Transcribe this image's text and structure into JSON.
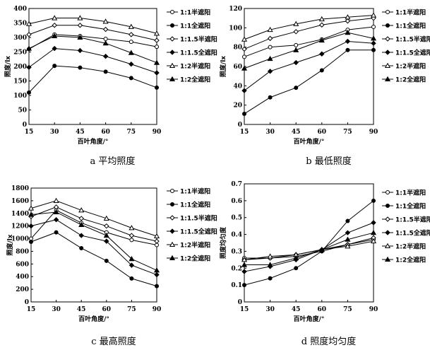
{
  "chart_data": [
    {
      "type": "line",
      "caption": "a  平均照度",
      "xlabel": "百叶角度/°",
      "ylabel": "照度/lx",
      "x": [
        15,
        30,
        45,
        60,
        75,
        90
      ],
      "ylim": [
        0,
        400
      ],
      "yticks": [
        0,
        50,
        100,
        150,
        200,
        250,
        300,
        350,
        400
      ],
      "legend_position": "right",
      "series": [
        {
          "name": "1:1半遮阳",
          "marker": "circle-open",
          "values": [
            260,
            310,
            305,
            295,
            285,
            268
          ]
        },
        {
          "name": "1:1全遮阳",
          "marker": "circle-filled",
          "values": [
            110,
            202,
            196,
            182,
            160,
            127
          ]
        },
        {
          "name": "1:1.5半遮阳",
          "marker": "diamond-open",
          "values": [
            310,
            342,
            342,
            328,
            310,
            290
          ]
        },
        {
          "name": "1:1.5全遮阳",
          "marker": "diamond-filled",
          "values": [
            197,
            262,
            255,
            235,
            208,
            178
          ]
        },
        {
          "name": "1:2半遮阳",
          "marker": "triangle-open",
          "values": [
            347,
            367,
            367,
            355,
            337,
            314
          ]
        },
        {
          "name": "1:2全遮阳",
          "marker": "triangle-filled",
          "values": [
            262,
            305,
            300,
            280,
            247,
            213
          ]
        }
      ]
    },
    {
      "type": "line",
      "caption": "b  最低照度",
      "xlabel": "百叶角度/°",
      "ylabel": "照度/lx",
      "x": [
        15,
        30,
        45,
        60,
        75,
        90
      ],
      "ylim": [
        0,
        120
      ],
      "yticks": [
        0,
        20,
        40,
        60,
        80,
        100,
        120
      ],
      "legend_position": "right",
      "series": [
        {
          "name": "1:1半遮阳",
          "marker": "circle-open",
          "values": [
            70,
            80,
            82,
            88,
            98,
            101
          ]
        },
        {
          "name": "1:1全遮阳",
          "marker": "circle-filled",
          "values": [
            11,
            28,
            38,
            56,
            77,
            77
          ]
        },
        {
          "name": "1:1.5半遮阳",
          "marker": "diamond-open",
          "values": [
            78,
            89,
            96,
            103,
            107,
            110
          ]
        },
        {
          "name": "1:1.5全遮阳",
          "marker": "diamond-filled",
          "values": [
            35,
            55,
            64,
            73,
            86,
            84
          ]
        },
        {
          "name": "1:2半遮阳",
          "marker": "triangle-open",
          "values": [
            88,
            98,
            104,
            109,
            111,
            113
          ]
        },
        {
          "name": "1:2全遮阳",
          "marker": "triangle-filled",
          "values": [
            58,
            68,
            77,
            87,
            95,
            89
          ]
        }
      ]
    },
    {
      "type": "line",
      "caption": "c  最高照度",
      "xlabel": "百叶角度/°",
      "ylabel": "照度/lx",
      "x": [
        15,
        30,
        45,
        60,
        75,
        90
      ],
      "ylim": [
        0,
        1800
      ],
      "yticks": [
        0,
        200,
        400,
        600,
        800,
        1000,
        1200,
        1400,
        1600,
        1800
      ],
      "legend_position": "right",
      "series": [
        {
          "name": "1:1半遮阳",
          "marker": "circle-open",
          "values": [
            1000,
            1450,
            1250,
            1100,
            980,
            900
          ]
        },
        {
          "name": "1:1全遮阳",
          "marker": "circle-filled",
          "values": [
            950,
            1100,
            850,
            650,
            370,
            250
          ]
        },
        {
          "name": "1:1.5半遮阳",
          "marker": "diamond-open",
          "values": [
            1350,
            1500,
            1320,
            1200,
            1050,
            960
          ]
        },
        {
          "name": "1:1.5全遮阳",
          "marker": "diamond-filled",
          "values": [
            1200,
            1300,
            1050,
            960,
            580,
            430
          ]
        },
        {
          "name": "1:2半遮阳",
          "marker": "triangle-open",
          "values": [
            1480,
            1600,
            1450,
            1320,
            1170,
            1040
          ]
        },
        {
          "name": "1:2全遮阳",
          "marker": "triangle-filled",
          "values": [
            1380,
            1420,
            1220,
            1050,
            680,
            500
          ]
        }
      ]
    },
    {
      "type": "line",
      "caption": "d  照度均匀度",
      "xlabel": "百叶角度/°",
      "ylabel": "照度均匀度",
      "x": [
        15,
        30,
        45,
        60,
        75,
        90
      ],
      "ylim": [
        0,
        0.7
      ],
      "yticks": [
        0,
        0.1,
        0.2,
        0.3,
        0.4,
        0.5,
        0.6,
        0.7
      ],
      "legend_position": "right",
      "series": [
        {
          "name": "1:1半遮阳",
          "marker": "circle-open",
          "values": [
            0.26,
            0.26,
            0.27,
            0.3,
            0.34,
            0.37
          ]
        },
        {
          "name": "1:1全遮阳",
          "marker": "circle-filled",
          "values": [
            0.1,
            0.14,
            0.2,
            0.3,
            0.48,
            0.6
          ]
        },
        {
          "name": "1:1.5半遮阳",
          "marker": "diamond-open",
          "values": [
            0.25,
            0.26,
            0.28,
            0.31,
            0.34,
            0.38
          ]
        },
        {
          "name": "1:1.5全遮阳",
          "marker": "diamond-filled",
          "values": [
            0.18,
            0.21,
            0.25,
            0.31,
            0.41,
            0.47
          ]
        },
        {
          "name": "1:2半遮阳",
          "marker": "triangle-open",
          "values": [
            0.25,
            0.27,
            0.28,
            0.31,
            0.33,
            0.36
          ]
        },
        {
          "name": "1:2全遮阳",
          "marker": "triangle-filled",
          "values": [
            0.22,
            0.22,
            0.26,
            0.31,
            0.37,
            0.41
          ]
        }
      ]
    }
  ]
}
